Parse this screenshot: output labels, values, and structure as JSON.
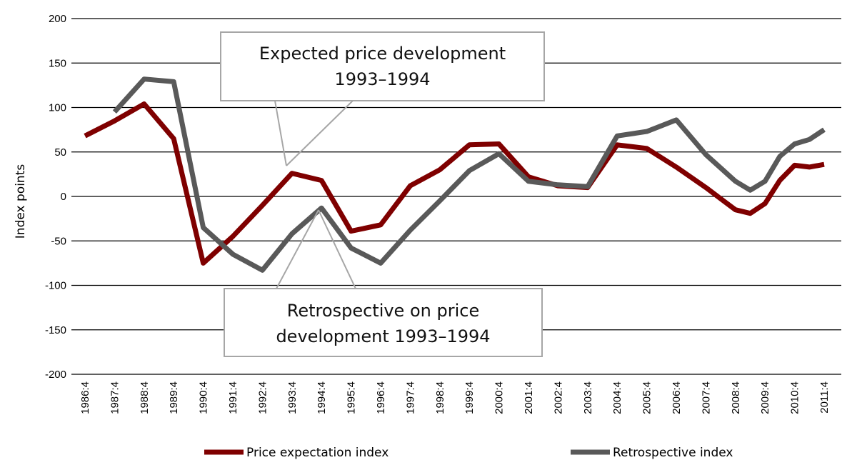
{
  "chart_data": {
    "type": "line",
    "title": "",
    "xlabel": "",
    "ylabel": "Index points",
    "ylim": [
      -200,
      200
    ],
    "yticks": [
      200,
      150,
      100,
      50,
      0,
      -50,
      -100,
      -150,
      -200
    ],
    "grid": true,
    "categories": [
      "1986:4",
      "1987:4",
      "1988:4",
      "1989:4",
      "1990:4",
      "1991:4",
      "1992:4",
      "1993:4",
      "1994:4",
      "1995:4",
      "1996:4",
      "1997:4",
      "1998:4",
      "1999:4",
      "2000:4",
      "2001:4",
      "2002:4",
      "2003:4",
      "2004:4",
      "2005:4",
      "2006:4",
      "2007:4",
      "2008:4",
      "2009:4",
      "2010:4",
      "2011:4"
    ],
    "series": [
      {
        "name": "Price expectation index",
        "color": "#7f0000",
        "x": [
          0,
          1,
          2,
          3,
          4,
          5,
          6,
          7,
          8,
          9,
          10,
          11,
          12,
          13,
          14,
          15,
          16,
          17,
          18,
          19,
          20,
          21,
          22,
          22.5,
          23,
          23.5,
          24,
          24.5,
          25
        ],
        "values": [
          68,
          85,
          104,
          65,
          -75,
          -45,
          -10,
          26,
          18,
          -39,
          -32,
          12,
          30,
          58,
          59,
          22,
          12,
          10,
          58,
          54,
          33,
          10,
          -15,
          -19,
          -8,
          18,
          35,
          33,
          36
        ]
      },
      {
        "name": "Retrospective index",
        "color": "#595959",
        "x": [
          1,
          2,
          3,
          4,
          5,
          6,
          7,
          8,
          9,
          10,
          11,
          12,
          13,
          14,
          15,
          16,
          17,
          18,
          19,
          20,
          21,
          22,
          22.5,
          23,
          23.5,
          24,
          24.5,
          25
        ],
        "values": [
          95,
          132,
          129,
          -35,
          -65,
          -83,
          -42,
          -13,
          -58,
          -75,
          -38,
          -5,
          29,
          48,
          17,
          13,
          11,
          68,
          73,
          86,
          47,
          17,
          7,
          17,
          45,
          59,
          64,
          75
        ]
      }
    ],
    "annotations": [
      {
        "text_lines": [
          "Expected price development",
          "1993–1994"
        ],
        "points_to": {
          "series": "Price expectation index",
          "category": "1993:4"
        }
      },
      {
        "text_lines": [
          "Retrospective on price",
          "development 1993–1994"
        ],
        "points_to": {
          "series": "Retrospective index",
          "category": "1994:4"
        }
      }
    ],
    "legend_position": "bottom"
  }
}
